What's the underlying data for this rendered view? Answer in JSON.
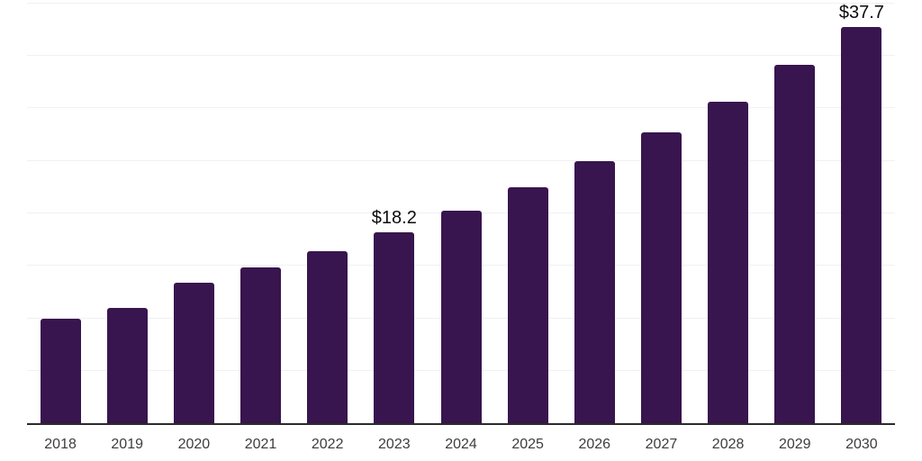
{
  "chart_data": {
    "type": "bar",
    "categories": [
      "2018",
      "2019",
      "2020",
      "2021",
      "2022",
      "2023",
      "2024",
      "2025",
      "2026",
      "2027",
      "2028",
      "2029",
      "2030"
    ],
    "values": [
      9.9,
      11.0,
      13.4,
      14.8,
      16.4,
      18.2,
      20.2,
      22.4,
      24.9,
      27.7,
      30.6,
      34.1,
      37.7
    ],
    "data_labels": {
      "2023": "$18.2",
      "2030": "$37.7"
    },
    "title": "",
    "xlabel": "",
    "ylabel": "",
    "ylim": [
      0,
      40
    ],
    "ytick_step": 5,
    "grid": true,
    "y_tick_labels_visible": false,
    "legend": false
  },
  "style": {
    "background": "#ffffff",
    "bar_color": "#38154e",
    "grid_color": "#f1f1f3",
    "axis_color": "#2b2b2b",
    "tick_label_color": "#3d3d3d",
    "data_label_color": "#0c0c0c"
  }
}
